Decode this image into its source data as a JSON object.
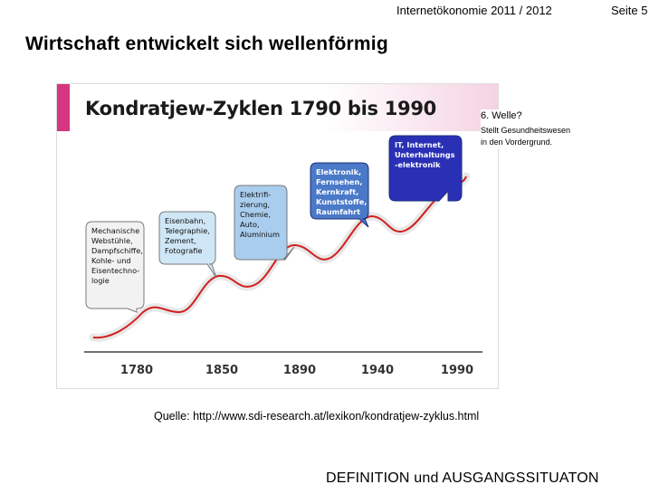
{
  "header": {
    "course": "Internetökonomie 2011 / 2012",
    "page": "Seite 5"
  },
  "slide_title": "Wirtschaft entwickelt sich wellenförmig",
  "figure": {
    "title": "Kondratjew-Zyklen 1790 bis 1990",
    "years": [
      "1780",
      "1850",
      "1890",
      "1940",
      "1990"
    ],
    "waves": [
      {
        "lines": [
          "Mechanische",
          "Webstühle,",
          "Dampfschiffe,",
          "Kohle- und",
          "Eisentechno-",
          "logie"
        ],
        "color": "#f2f2f2"
      },
      {
        "lines": [
          "Eisenbahn,",
          "Telegraphie,",
          "Zement,",
          "Fotografie"
        ],
        "color": "#cfe6f6"
      },
      {
        "lines": [
          "Elektrifi-",
          "zierung,",
          "Chemie,",
          "Auto,",
          "Aluminium"
        ],
        "color": "#a9cdee"
      },
      {
        "lines": [
          "Elektronik,",
          "Fernsehen,",
          "Kernkraft,",
          "Kunststoffe,",
          "Raumfahrt"
        ],
        "color": "#4a79c8"
      },
      {
        "lines": [
          "IT, Internet,",
          "Unterhaltungs",
          "-elektronik"
        ],
        "color": "#2a30b5"
      }
    ],
    "curve_color": "#d21f1f",
    "bar_color": "#d6367f"
  },
  "note": {
    "heading": "6. Welle?",
    "body_lines": [
      "Stellt Gesundheitswesen",
      "in den Vordergrund."
    ]
  },
  "source": "Quelle: http://www.sdi-research.at/lexikon/kondratjew-zyklus.html",
  "footer": "DEFINITION und AUSGANGSSITUATON"
}
